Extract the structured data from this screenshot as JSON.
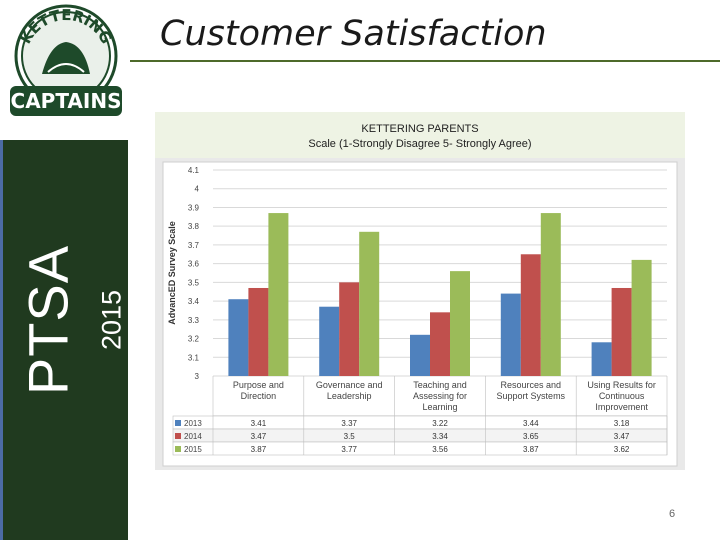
{
  "slide": {
    "title": "Customer Satisfaction",
    "side_label": "PTSA",
    "side_year": "2015",
    "page_number": "6"
  },
  "logo": {
    "top_text": "KETTERING",
    "bottom_text": "CAPTAINS"
  },
  "colors": {
    "sidebar": "#203a1f",
    "title_rule": "#4e6a2a",
    "series": [
      "#4f81bd",
      "#c0504d",
      "#9bbb59"
    ]
  },
  "chart_data": {
    "type": "bar",
    "title": "KETTERING PARENTS",
    "subtitle": "Scale (1-Strongly Disagree 5- Strongly Agree)",
    "ylabel": "AdvancED Survey Scale",
    "xlabel": "",
    "ylim": [
      3,
      4.1
    ],
    "yticks": [
      "4.1",
      "4",
      "3.9",
      "3.8",
      "3.7",
      "3.6",
      "3.5",
      "3.4",
      "3.3",
      "3.2",
      "3.1",
      "3"
    ],
    "grid": true,
    "categories": [
      [
        "Purpose and",
        "Direction"
      ],
      [
        "Governance and",
        "Leadership"
      ],
      [
        "Teaching and",
        "Assessing for",
        "Learning"
      ],
      [
        "Resources and",
        "Support Systems"
      ],
      [
        "Using Results for",
        "Continuous",
        "Improvement"
      ]
    ],
    "series": [
      {
        "name": "2013",
        "values": [
          3.41,
          3.37,
          3.22,
          3.44,
          3.18
        ],
        "labels": [
          "3.41",
          "3.37",
          "3.22",
          "3.44",
          "3.18"
        ]
      },
      {
        "name": "2014",
        "values": [
          3.47,
          3.5,
          3.34,
          3.65,
          3.47
        ],
        "labels": [
          "3.47",
          "3.5",
          "3.34",
          "3.65",
          "3.47"
        ]
      },
      {
        "name": "2015",
        "values": [
          3.87,
          3.77,
          3.56,
          3.87,
          3.62
        ],
        "labels": [
          "3.87",
          "3.77",
          "3.56",
          "3.87",
          "3.62"
        ]
      }
    ],
    "data_table": true
  }
}
